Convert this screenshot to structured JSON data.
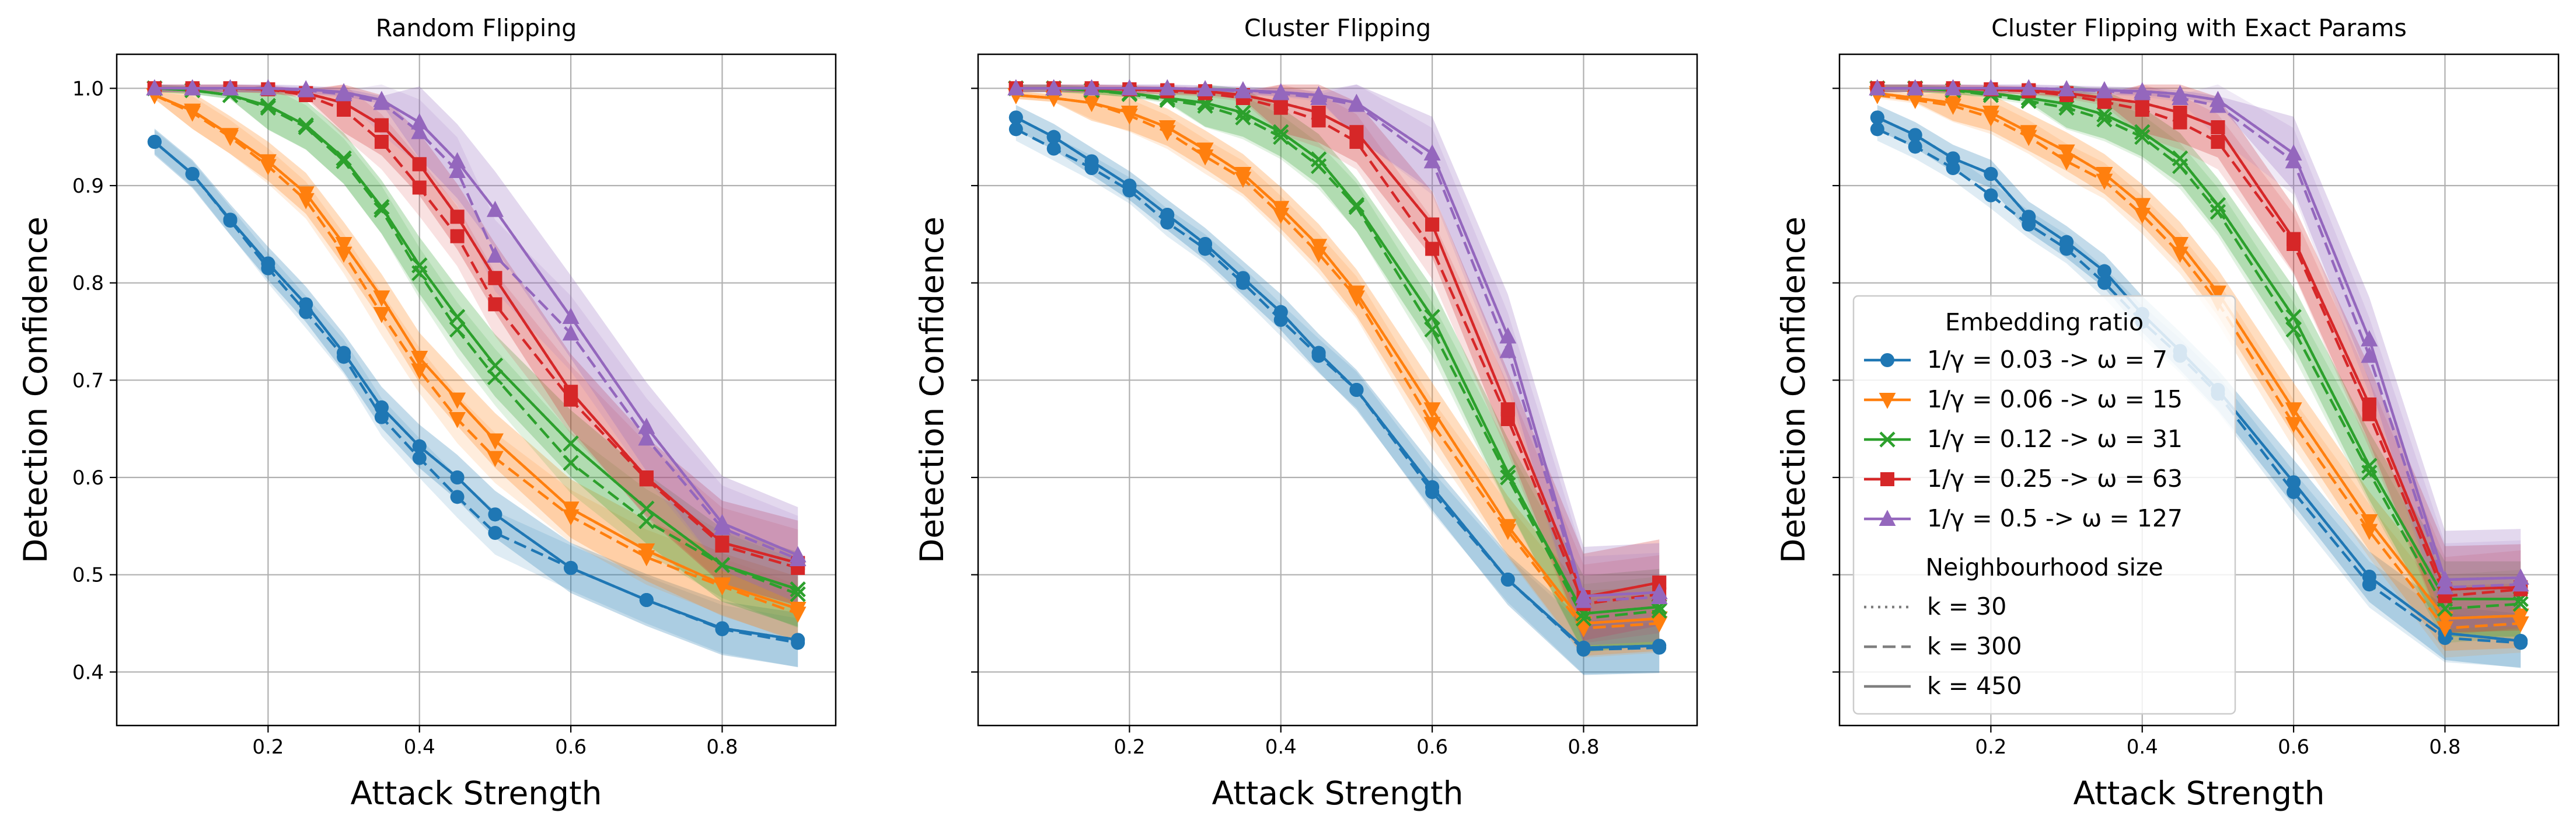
{
  "chart_data": [
    {
      "type": "line",
      "title": "Random Flipping",
      "xlabel": "Attack Strength",
      "ylabel": "Detection Confidence",
      "xlim": [
        0.0,
        0.95
      ],
      "ylim": [
        0.345,
        1.035
      ],
      "xticks": [
        0.2,
        0.4,
        0.6,
        0.8
      ],
      "yticks": [
        0.4,
        0.5,
        0.6,
        0.7,
        0.8,
        0.9,
        1.0
      ],
      "grid": true,
      "x": [
        0.05,
        0.1,
        0.15,
        0.2,
        0.25,
        0.3,
        0.35,
        0.4,
        0.45,
        0.5,
        0.6,
        0.7,
        0.8,
        0.9
      ],
      "series": [
        {
          "ratio": "0.03",
          "k": 30,
          "values": [
            0.945,
            0.912,
            0.865,
            0.82,
            0.778,
            0.728,
            0.672,
            0.632,
            0.6,
            0.562,
            0.507,
            0.474,
            0.445,
            0.433
          ]
        },
        {
          "ratio": "0.03",
          "k": 300,
          "values": [
            0.945,
            0.912,
            0.864,
            0.815,
            0.77,
            0.724,
            0.662,
            0.62,
            0.58,
            0.543,
            0.507,
            0.474,
            0.444,
            0.43
          ]
        },
        {
          "ratio": "0.03",
          "k": 450,
          "values": [
            0.945,
            0.912,
            0.865,
            0.82,
            0.778,
            0.728,
            0.672,
            0.632,
            0.6,
            0.562,
            0.507,
            0.474,
            0.445,
            0.433
          ]
        },
        {
          "ratio": "0.06",
          "k": 30,
          "values": [
            0.993,
            0.977,
            0.952,
            0.925,
            0.892,
            0.84,
            0.785,
            0.723,
            0.68,
            0.638,
            0.568,
            0.525,
            0.49,
            0.465
          ]
        },
        {
          "ratio": "0.06",
          "k": 300,
          "values": [
            0.993,
            0.975,
            0.95,
            0.92,
            0.885,
            0.83,
            0.768,
            0.71,
            0.66,
            0.62,
            0.56,
            0.518,
            0.488,
            0.46
          ]
        },
        {
          "ratio": "0.06",
          "k": 450,
          "values": [
            0.993,
            0.977,
            0.952,
            0.925,
            0.892,
            0.84,
            0.785,
            0.723,
            0.68,
            0.638,
            0.568,
            0.525,
            0.49,
            0.465
          ]
        },
        {
          "ratio": "0.12",
          "k": 30,
          "values": [
            1.0,
            0.998,
            0.993,
            0.982,
            0.962,
            0.928,
            0.878,
            0.818,
            0.765,
            0.715,
            0.635,
            0.568,
            0.51,
            0.485
          ]
        },
        {
          "ratio": "0.12",
          "k": 300,
          "values": [
            1.0,
            0.998,
            0.993,
            0.98,
            0.96,
            0.925,
            0.875,
            0.81,
            0.752,
            0.703,
            0.615,
            0.555,
            0.51,
            0.48
          ]
        },
        {
          "ratio": "0.12",
          "k": 450,
          "values": [
            1.0,
            0.998,
            0.993,
            0.982,
            0.962,
            0.928,
            0.878,
            0.818,
            0.765,
            0.715,
            0.635,
            0.568,
            0.51,
            0.485
          ]
        },
        {
          "ratio": "0.25",
          "k": 30,
          "values": [
            1.0,
            1.0,
            1.0,
            0.999,
            0.995,
            0.985,
            0.962,
            0.922,
            0.868,
            0.805,
            0.688,
            0.6,
            0.533,
            0.512
          ]
        },
        {
          "ratio": "0.25",
          "k": 300,
          "values": [
            1.0,
            1.0,
            1.0,
            0.999,
            0.993,
            0.978,
            0.945,
            0.898,
            0.848,
            0.778,
            0.68,
            0.598,
            0.53,
            0.507
          ]
        },
        {
          "ratio": "0.25",
          "k": 450,
          "values": [
            1.0,
            1.0,
            1.0,
            0.999,
            0.995,
            0.985,
            0.962,
            0.922,
            0.868,
            0.805,
            0.688,
            0.6,
            0.533,
            0.512
          ]
        },
        {
          "ratio": "0.5",
          "k": 30,
          "values": [
            1.0,
            1.0,
            1.0,
            1.0,
            0.999,
            0.996,
            0.988,
            0.965,
            0.925,
            0.875,
            0.765,
            0.652,
            0.553,
            0.52
          ]
        },
        {
          "ratio": "0.5",
          "k": 300,
          "values": [
            1.0,
            1.0,
            1.0,
            1.0,
            0.998,
            0.994,
            0.985,
            0.955,
            0.915,
            0.828,
            0.748,
            0.64,
            0.548,
            0.516
          ]
        },
        {
          "ratio": "0.5",
          "k": 450,
          "values": [
            1.0,
            1.0,
            1.0,
            1.0,
            0.999,
            0.996,
            0.988,
            0.965,
            0.925,
            0.875,
            0.765,
            0.652,
            0.553,
            0.52
          ]
        }
      ]
    },
    {
      "type": "line",
      "title": "Cluster Flipping",
      "xlabel": "Attack Strength",
      "ylabel": "Detection Confidence",
      "xlim": [
        0.0,
        0.95
      ],
      "ylim": [
        0.345,
        1.035
      ],
      "xticks": [
        0.2,
        0.4,
        0.6,
        0.8
      ],
      "yticks": [
        0.4,
        0.5,
        0.6,
        0.7,
        0.8,
        0.9,
        1.0
      ],
      "grid": true,
      "x": [
        0.05,
        0.1,
        0.15,
        0.2,
        0.25,
        0.3,
        0.35,
        0.4,
        0.45,
        0.5,
        0.6,
        0.7,
        0.8,
        0.9
      ],
      "series": [
        {
          "ratio": "0.03",
          "k": 30,
          "values": [
            0.97,
            0.95,
            0.925,
            0.9,
            0.87,
            0.84,
            0.805,
            0.77,
            0.728,
            0.69,
            0.59,
            0.495,
            0.425,
            0.427
          ]
        },
        {
          "ratio": "0.03",
          "k": 300,
          "values": [
            0.958,
            0.938,
            0.918,
            0.895,
            0.862,
            0.835,
            0.8,
            0.762,
            0.725,
            0.69,
            0.585,
            0.495,
            0.423,
            0.425
          ]
        },
        {
          "ratio": "0.03",
          "k": 450,
          "values": [
            0.97,
            0.95,
            0.925,
            0.9,
            0.87,
            0.84,
            0.805,
            0.77,
            0.728,
            0.69,
            0.59,
            0.495,
            0.425,
            0.427
          ]
        },
        {
          "ratio": "0.06",
          "k": 30,
          "values": [
            0.993,
            0.99,
            0.985,
            0.975,
            0.96,
            0.937,
            0.912,
            0.877,
            0.838,
            0.79,
            0.67,
            0.55,
            0.45,
            0.455
          ]
        },
        {
          "ratio": "0.06",
          "k": 300,
          "values": [
            0.993,
            0.99,
            0.985,
            0.972,
            0.955,
            0.93,
            0.907,
            0.87,
            0.83,
            0.785,
            0.655,
            0.545,
            0.445,
            0.45
          ]
        },
        {
          "ratio": "0.06",
          "k": 450,
          "values": [
            0.993,
            0.99,
            0.985,
            0.975,
            0.96,
            0.937,
            0.912,
            0.877,
            0.838,
            0.79,
            0.67,
            0.55,
            0.45,
            0.455
          ]
        },
        {
          "ratio": "0.12",
          "k": 30,
          "values": [
            1.0,
            1.0,
            0.998,
            0.995,
            0.99,
            0.985,
            0.975,
            0.955,
            0.927,
            0.88,
            0.765,
            0.605,
            0.46,
            0.467
          ]
        },
        {
          "ratio": "0.12",
          "k": 300,
          "values": [
            1.0,
            1.0,
            0.998,
            0.994,
            0.988,
            0.982,
            0.97,
            0.95,
            0.92,
            0.878,
            0.752,
            0.6,
            0.455,
            0.463
          ]
        },
        {
          "ratio": "0.12",
          "k": 450,
          "values": [
            1.0,
            1.0,
            0.998,
            0.995,
            0.99,
            0.985,
            0.975,
            0.955,
            0.927,
            0.88,
            0.765,
            0.605,
            0.46,
            0.467
          ]
        },
        {
          "ratio": "0.25",
          "k": 30,
          "values": [
            1.0,
            1.0,
            1.0,
            0.999,
            0.998,
            0.997,
            0.993,
            0.985,
            0.975,
            0.955,
            0.86,
            0.67,
            0.477,
            0.492
          ]
        },
        {
          "ratio": "0.25",
          "k": 300,
          "values": [
            1.0,
            1.0,
            1.0,
            0.999,
            0.997,
            0.995,
            0.99,
            0.98,
            0.967,
            0.945,
            0.835,
            0.66,
            0.47,
            0.48
          ]
        },
        {
          "ratio": "0.25",
          "k": 450,
          "values": [
            1.0,
            1.0,
            1.0,
            0.999,
            0.998,
            0.997,
            0.993,
            0.985,
            0.975,
            0.955,
            0.86,
            0.67,
            0.477,
            0.492
          ]
        },
        {
          "ratio": "0.5",
          "k": 30,
          "values": [
            1.0,
            1.0,
            1.0,
            1.0,
            1.0,
            0.999,
            0.998,
            0.996,
            0.993,
            0.985,
            0.933,
            0.745,
            0.478,
            0.482
          ]
        },
        {
          "ratio": "0.5",
          "k": 300,
          "values": [
            1.0,
            1.0,
            1.0,
            1.0,
            1.0,
            0.999,
            0.997,
            0.995,
            0.99,
            0.983,
            0.925,
            0.73,
            0.473,
            0.477
          ]
        },
        {
          "ratio": "0.5",
          "k": 450,
          "values": [
            1.0,
            1.0,
            1.0,
            1.0,
            1.0,
            0.999,
            0.998,
            0.996,
            0.993,
            0.985,
            0.933,
            0.745,
            0.478,
            0.482
          ]
        }
      ]
    },
    {
      "type": "line",
      "title": "Cluster Flipping with Exact Params",
      "xlabel": "Attack Strength",
      "ylabel": "Detection Confidence",
      "xlim": [
        0.0,
        0.95
      ],
      "ylim": [
        0.345,
        1.035
      ],
      "xticks": [
        0.2,
        0.4,
        0.6,
        0.8
      ],
      "yticks": [
        0.4,
        0.5,
        0.6,
        0.7,
        0.8,
        0.9,
        1.0
      ],
      "grid": true,
      "x": [
        0.05,
        0.1,
        0.15,
        0.2,
        0.25,
        0.3,
        0.35,
        0.4,
        0.45,
        0.5,
        0.6,
        0.7,
        0.8,
        0.9
      ],
      "series": [
        {
          "ratio": "0.03",
          "k": 30,
          "values": [
            0.97,
            0.952,
            0.928,
            0.912,
            0.868,
            0.842,
            0.812,
            0.768,
            0.73,
            0.69,
            0.595,
            0.498,
            0.44,
            0.432
          ]
        },
        {
          "ratio": "0.03",
          "k": 300,
          "values": [
            0.958,
            0.94,
            0.918,
            0.89,
            0.86,
            0.835,
            0.8,
            0.76,
            0.725,
            0.686,
            0.585,
            0.49,
            0.435,
            0.43
          ]
        },
        {
          "ratio": "0.03",
          "k": 450,
          "values": [
            0.97,
            0.952,
            0.928,
            0.912,
            0.868,
            0.842,
            0.812,
            0.768,
            0.73,
            0.69,
            0.595,
            0.498,
            0.44,
            0.432
          ]
        },
        {
          "ratio": "0.06",
          "k": 30,
          "values": [
            0.995,
            0.99,
            0.985,
            0.975,
            0.955,
            0.935,
            0.912,
            0.88,
            0.84,
            0.79,
            0.67,
            0.555,
            0.455,
            0.458
          ]
        },
        {
          "ratio": "0.06",
          "k": 300,
          "values": [
            0.993,
            0.988,
            0.982,
            0.97,
            0.95,
            0.925,
            0.905,
            0.87,
            0.83,
            0.78,
            0.655,
            0.545,
            0.445,
            0.45
          ]
        },
        {
          "ratio": "0.06",
          "k": 450,
          "values": [
            0.995,
            0.99,
            0.985,
            0.975,
            0.955,
            0.935,
            0.912,
            0.88,
            0.84,
            0.79,
            0.67,
            0.555,
            0.455,
            0.458
          ]
        },
        {
          "ratio": "0.12",
          "k": 30,
          "values": [
            1.0,
            1.0,
            0.998,
            0.995,
            0.99,
            0.984,
            0.973,
            0.955,
            0.928,
            0.88,
            0.765,
            0.612,
            0.475,
            0.475
          ]
        },
        {
          "ratio": "0.12",
          "k": 300,
          "values": [
            1.0,
            1.0,
            0.998,
            0.993,
            0.987,
            0.98,
            0.968,
            0.95,
            0.92,
            0.873,
            0.752,
            0.605,
            0.465,
            0.47
          ]
        },
        {
          "ratio": "0.12",
          "k": 450,
          "values": [
            1.0,
            1.0,
            0.998,
            0.995,
            0.99,
            0.984,
            0.973,
            0.955,
            0.928,
            0.88,
            0.765,
            0.612,
            0.475,
            0.475
          ]
        },
        {
          "ratio": "0.25",
          "k": 30,
          "values": [
            1.0,
            1.0,
            1.0,
            0.999,
            0.998,
            0.995,
            0.99,
            0.985,
            0.975,
            0.96,
            0.845,
            0.675,
            0.485,
            0.487
          ]
        },
        {
          "ratio": "0.25",
          "k": 300,
          "values": [
            1.0,
            1.0,
            1.0,
            0.999,
            0.997,
            0.993,
            0.986,
            0.978,
            0.965,
            0.945,
            0.84,
            0.665,
            0.478,
            0.485
          ]
        },
        {
          "ratio": "0.25",
          "k": 450,
          "values": [
            1.0,
            1.0,
            1.0,
            0.999,
            0.998,
            0.995,
            0.99,
            0.985,
            0.975,
            0.96,
            0.845,
            0.675,
            0.485,
            0.487
          ]
        },
        {
          "ratio": "0.5",
          "k": 30,
          "values": [
            1.0,
            1.0,
            1.0,
            1.0,
            1.0,
            0.999,
            0.998,
            0.997,
            0.994,
            0.988,
            0.933,
            0.742,
            0.495,
            0.497
          ]
        },
        {
          "ratio": "0.5",
          "k": 300,
          "values": [
            1.0,
            1.0,
            1.0,
            1.0,
            1.0,
            0.999,
            0.997,
            0.995,
            0.99,
            0.982,
            0.925,
            0.725,
            0.487,
            0.49
          ]
        },
        {
          "ratio": "0.5",
          "k": 450,
          "values": [
            1.0,
            1.0,
            1.0,
            1.0,
            1.0,
            0.999,
            0.998,
            0.997,
            0.994,
            0.988,
            0.933,
            0.742,
            0.495,
            0.497
          ]
        }
      ]
    }
  ],
  "legend": {
    "placement": "inside third plot, lower left",
    "ratio_title": "Embedding ratio",
    "ratio_entries": [
      {
        "ratio": "0.03",
        "label": "1/γ = 0.03 -> ω = 7",
        "color": "#1f77b4",
        "marker": "circle"
      },
      {
        "ratio": "0.06",
        "label": "1/γ = 0.06 -> ω = 15",
        "color": "#ff7f0e",
        "marker": "triangle-down"
      },
      {
        "ratio": "0.12",
        "label": "1/γ = 0.12 -> ω = 31",
        "color": "#2ca02c",
        "marker": "x"
      },
      {
        "ratio": "0.25",
        "label": "1/γ = 0.25 -> ω = 63",
        "color": "#d62728",
        "marker": "square"
      },
      {
        "ratio": "0.5",
        "label": "1/γ = 0.5 -> ω = 127",
        "color": "#9467bd",
        "marker": "triangle-up"
      }
    ],
    "k_title": "Neighbourhood size",
    "k_entries": [
      {
        "k": 30,
        "label": "k = 30",
        "dash": "dotted"
      },
      {
        "k": 300,
        "label": "k = 300",
        "dash": "dashed"
      },
      {
        "k": 450,
        "label": "k = 450",
        "dash": "solid"
      }
    ]
  }
}
